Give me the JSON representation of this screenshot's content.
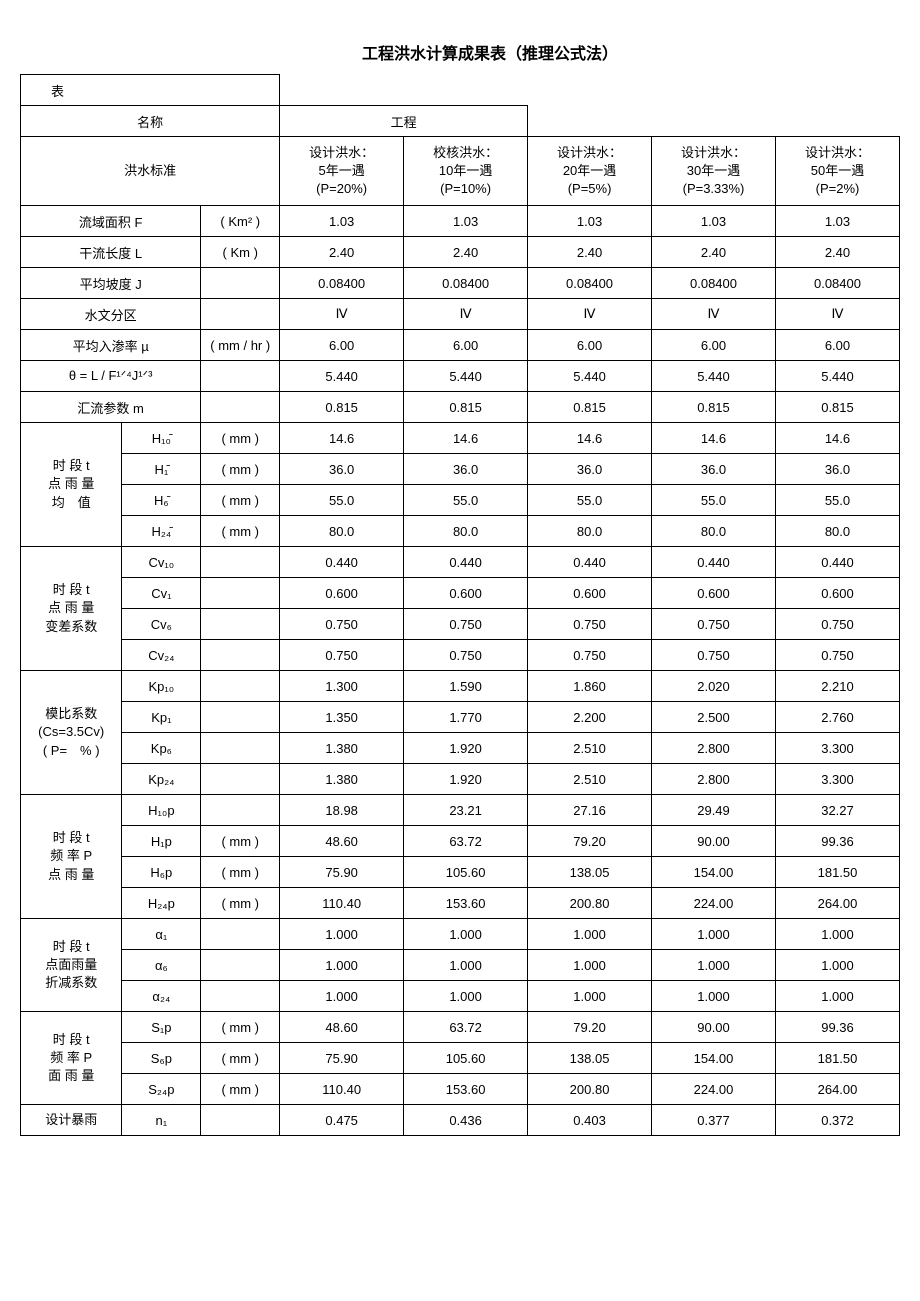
{
  "title": "工程洪水计算成果表（推理公式法）",
  "header": {
    "biao": "表",
    "name_label": "名称",
    "project": "工程",
    "flood_standard": "洪水标准",
    "cols": [
      {
        "l1": "设计洪水：",
        "l2": "5年一遇",
        "l3": "(P=20%)"
      },
      {
        "l1": "校核洪水：",
        "l2": "10年一遇",
        "l3": "(P=10%)"
      },
      {
        "l1": "设计洪水：",
        "l2": "20年一遇",
        "l3": "(P=5%)"
      },
      {
        "l1": "设计洪水：",
        "l2": "30年一遇",
        "l3": "(P=3.33%)"
      },
      {
        "l1": "设计洪水：",
        "l2": "50年一遇",
        "l3": "(P=2%)"
      }
    ]
  },
  "rows": {
    "F": {
      "label": "流域面积 F",
      "unit": "( Km² )",
      "v": [
        "1.03",
        "1.03",
        "1.03",
        "1.03",
        "1.03"
      ]
    },
    "L": {
      "label": "干流长度 L",
      "unit": "( Km )",
      "v": [
        "2.40",
        "2.40",
        "2.40",
        "2.40",
        "2.40"
      ]
    },
    "J": {
      "label": "平均坡度 J",
      "unit": "",
      "v": [
        "0.08400",
        "0.08400",
        "0.08400",
        "0.08400",
        "0.08400"
      ]
    },
    "zone": {
      "label": "水文分区",
      "unit": "",
      "v": [
        "Ⅳ",
        "Ⅳ",
        "Ⅳ",
        "Ⅳ",
        "Ⅳ"
      ]
    },
    "mu": {
      "label": "平均入渗率 µ",
      "unit": "( mm / hr )",
      "v": [
        "6.00",
        "6.00",
        "6.00",
        "6.00",
        "6.00"
      ]
    },
    "theta": {
      "label": "θ = L / F¹ᐟ⁴J¹ᐟ³",
      "unit": "",
      "v": [
        "5.440",
        "5.440",
        "5.440",
        "5.440",
        "5.440"
      ]
    },
    "m": {
      "label": "汇流参数 m",
      "unit": "",
      "v": [
        "0.815",
        "0.815",
        "0.815",
        "0.815",
        "0.815"
      ]
    }
  },
  "groups": {
    "mean": {
      "label": "时 段 t\n点 雨 量\n均　值",
      "rows": [
        {
          "p": "H₁₀̄",
          "u": "( mm )",
          "v": [
            "14.6",
            "14.6",
            "14.6",
            "14.6",
            "14.6"
          ]
        },
        {
          "p": "H₁̄",
          "u": "( mm )",
          "v": [
            "36.0",
            "36.0",
            "36.0",
            "36.0",
            "36.0"
          ]
        },
        {
          "p": "H₆̄",
          "u": "( mm )",
          "v": [
            "55.0",
            "55.0",
            "55.0",
            "55.0",
            "55.0"
          ]
        },
        {
          "p": "H₂₄̄",
          "u": "( mm )",
          "v": [
            "80.0",
            "80.0",
            "80.0",
            "80.0",
            "80.0"
          ]
        }
      ]
    },
    "cv": {
      "label": "时 段 t\n点 雨 量\n变差系数",
      "rows": [
        {
          "p": "Cv₁₀",
          "u": "",
          "v": [
            "0.440",
            "0.440",
            "0.440",
            "0.440",
            "0.440"
          ]
        },
        {
          "p": "Cv₁",
          "u": "",
          "v": [
            "0.600",
            "0.600",
            "0.600",
            "0.600",
            "0.600"
          ]
        },
        {
          "p": "Cv₆",
          "u": "",
          "v": [
            "0.750",
            "0.750",
            "0.750",
            "0.750",
            "0.750"
          ]
        },
        {
          "p": "Cv₂₄",
          "u": "",
          "v": [
            "0.750",
            "0.750",
            "0.750",
            "0.750",
            "0.750"
          ]
        }
      ]
    },
    "kp": {
      "label": "模比系数\n(Cs=3.5Cv)\n( P=　% )",
      "rows": [
        {
          "p": "Kp₁₀",
          "u": "",
          "v": [
            "1.300",
            "1.590",
            "1.860",
            "2.020",
            "2.210"
          ]
        },
        {
          "p": "Kp₁",
          "u": "",
          "v": [
            "1.350",
            "1.770",
            "2.200",
            "2.500",
            "2.760"
          ]
        },
        {
          "p": "Kp₆",
          "u": "",
          "v": [
            "1.380",
            "1.920",
            "2.510",
            "2.800",
            "3.300"
          ]
        },
        {
          "p": "Kp₂₄",
          "u": "",
          "v": [
            "1.380",
            "1.920",
            "2.510",
            "2.800",
            "3.300"
          ]
        }
      ]
    },
    "hp": {
      "label": "时 段 t\n频 率 P\n点 雨 量",
      "rows": [
        {
          "p": "H₁₀p",
          "u": "",
          "v": [
            "18.98",
            "23.21",
            "27.16",
            "29.49",
            "32.27"
          ]
        },
        {
          "p": "H₁p",
          "u": "( mm )",
          "v": [
            "48.60",
            "63.72",
            "79.20",
            "90.00",
            "99.36"
          ]
        },
        {
          "p": "H₆p",
          "u": "( mm )",
          "v": [
            "75.90",
            "105.60",
            "138.05",
            "154.00",
            "181.50"
          ]
        },
        {
          "p": "H₂₄p",
          "u": "( mm )",
          "v": [
            "110.40",
            "153.60",
            "200.80",
            "224.00",
            "264.00"
          ]
        }
      ]
    },
    "alpha": {
      "label": "时 段 t\n点面雨量\n折减系数",
      "rows": [
        {
          "p": "α₁",
          "u": "",
          "v": [
            "1.000",
            "1.000",
            "1.000",
            "1.000",
            "1.000"
          ]
        },
        {
          "p": "α₆",
          "u": "",
          "v": [
            "1.000",
            "1.000",
            "1.000",
            "1.000",
            "1.000"
          ]
        },
        {
          "p": "α₂₄",
          "u": "",
          "v": [
            "1.000",
            "1.000",
            "1.000",
            "1.000",
            "1.000"
          ]
        }
      ]
    },
    "sp": {
      "label": "时 段 t\n频 率 P\n面 雨 量",
      "rows": [
        {
          "p": "S₁p",
          "u": "( mm )",
          "v": [
            "48.60",
            "63.72",
            "79.20",
            "90.00",
            "99.36"
          ]
        },
        {
          "p": "S₆p",
          "u": "( mm )",
          "v": [
            "75.90",
            "105.60",
            "138.05",
            "154.00",
            "181.50"
          ]
        },
        {
          "p": "S₂₄p",
          "u": "( mm )",
          "v": [
            "110.40",
            "153.60",
            "200.80",
            "224.00",
            "264.00"
          ]
        }
      ]
    },
    "n": {
      "label": "设计暴雨",
      "rows": [
        {
          "p": "n₁",
          "u": "",
          "v": [
            "0.475",
            "0.436",
            "0.403",
            "0.377",
            "0.372"
          ]
        }
      ]
    }
  }
}
